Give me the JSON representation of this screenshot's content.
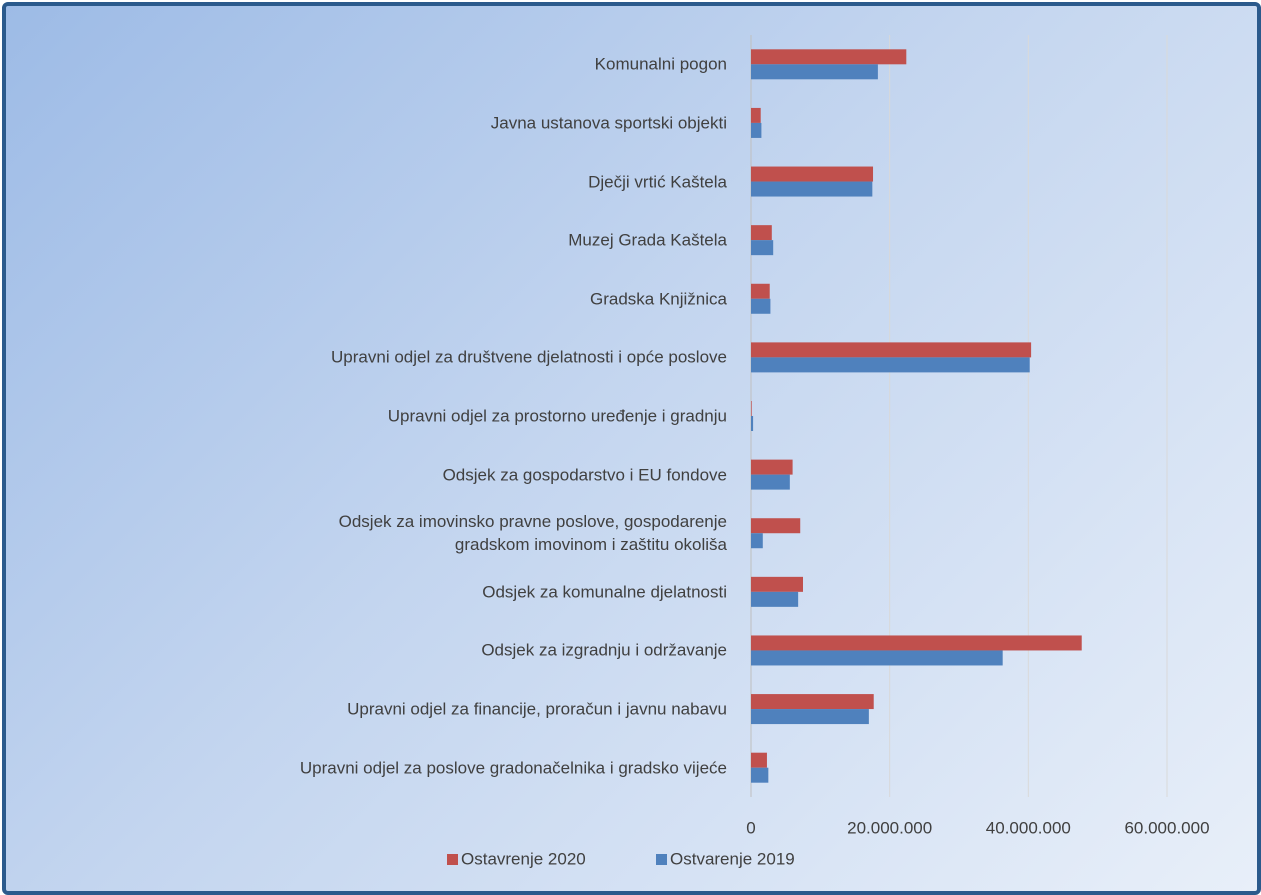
{
  "chart_data": {
    "type": "bar",
    "orientation": "horizontal",
    "categories": [
      "Komunalni pogon",
      "Javna ustanova sportski objekti",
      "Dječji vrtić Kaštela",
      "Muzej Grada Kaštela",
      "Gradska Knjižnica",
      "Upravni odjel za društvene djelatnosti i opće poslove",
      "Upravni odjel za prostorno uređenje i gradnju",
      "Odsjek za gospodarstvo i EU fondove",
      "Odsjek za imovinsko pravne poslove, gospodarenje\ngradskom imovinom i zaštitu okoliša",
      "Odsjek za komunalne djelatnosti",
      "Odsjek za izgradnju i održavanje",
      "Upravni odjel za financije, proračun i javnu nabavu",
      "Upravni odjel za poslove gradonačelnika i gradsko vijeće"
    ],
    "series": [
      {
        "name": "Ostavrenje 2020",
        "color": "#c0504d",
        "values": [
          22400000,
          1400000,
          17600000,
          3000000,
          2700000,
          40400000,
          100000,
          6000000,
          7100000,
          7500000,
          47700000,
          17700000,
          2300000
        ]
      },
      {
        "name": "Ostvarenje 2019",
        "color": "#4f81bd",
        "values": [
          18300000,
          1500000,
          17500000,
          3200000,
          2800000,
          40200000,
          300000,
          5600000,
          1700000,
          6800000,
          36300000,
          17000000,
          2500000
        ]
      }
    ],
    "xlim": [
      0,
      60000000
    ],
    "xticks": [
      0,
      {
        "value": 20000000,
        "label": "20.000.000"
      },
      {
        "value": 40000000,
        "label": "40.000.000"
      },
      {
        "value": 60000000,
        "label": "60.000.000"
      }
    ],
    "grid": true,
    "legend": "bottom"
  }
}
